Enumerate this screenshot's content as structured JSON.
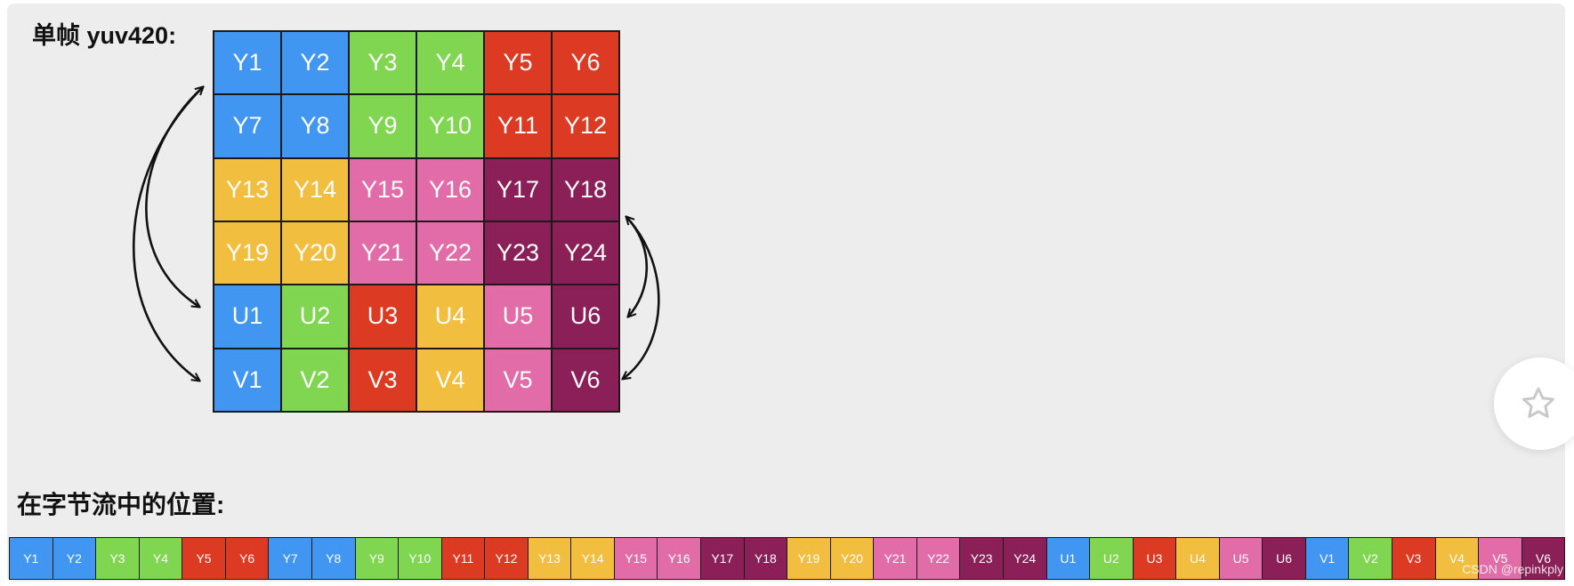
{
  "frame_title": "单帧 yuv420:",
  "stream_title": "在字节流中的位置:",
  "watermark": "CSDN @repinkply",
  "icons": {
    "favorite": "star-outline-icon"
  },
  "colors": {
    "blue": "#4196f1",
    "green": "#80d651",
    "red": "#dd3a23",
    "orange": "#f2be3f",
    "pink": "#e16ca8",
    "purple": "#8b2058"
  },
  "grid_rows": [
    [
      {
        "label": "Y1",
        "color": "blue"
      },
      {
        "label": "Y2",
        "color": "blue"
      },
      {
        "label": "Y3",
        "color": "green"
      },
      {
        "label": "Y4",
        "color": "green"
      },
      {
        "label": "Y5",
        "color": "red"
      },
      {
        "label": "Y6",
        "color": "red"
      }
    ],
    [
      {
        "label": "Y7",
        "color": "blue"
      },
      {
        "label": "Y8",
        "color": "blue"
      },
      {
        "label": "Y9",
        "color": "green"
      },
      {
        "label": "Y10",
        "color": "green"
      },
      {
        "label": "Y11",
        "color": "red"
      },
      {
        "label": "Y12",
        "color": "red"
      }
    ],
    [
      {
        "label": "Y13",
        "color": "orange"
      },
      {
        "label": "Y14",
        "color": "orange"
      },
      {
        "label": "Y15",
        "color": "pink"
      },
      {
        "label": "Y16",
        "color": "pink"
      },
      {
        "label": "Y17",
        "color": "purple"
      },
      {
        "label": "Y18",
        "color": "purple"
      }
    ],
    [
      {
        "label": "Y19",
        "color": "orange"
      },
      {
        "label": "Y20",
        "color": "orange"
      },
      {
        "label": "Y21",
        "color": "pink"
      },
      {
        "label": "Y22",
        "color": "pink"
      },
      {
        "label": "Y23",
        "color": "purple"
      },
      {
        "label": "Y24",
        "color": "purple"
      }
    ],
    [
      {
        "label": "U1",
        "color": "blue"
      },
      {
        "label": "U2",
        "color": "green"
      },
      {
        "label": "U3",
        "color": "red"
      },
      {
        "label": "U4",
        "color": "orange"
      },
      {
        "label": "U5",
        "color": "pink"
      },
      {
        "label": "U6",
        "color": "purple"
      }
    ],
    [
      {
        "label": "V1",
        "color": "blue"
      },
      {
        "label": "V2",
        "color": "green"
      },
      {
        "label": "V3",
        "color": "red"
      },
      {
        "label": "V4",
        "color": "orange"
      },
      {
        "label": "V5",
        "color": "pink"
      },
      {
        "label": "V6",
        "color": "purple"
      }
    ]
  ],
  "stream": [
    {
      "label": "Y1",
      "color": "blue"
    },
    {
      "label": "Y2",
      "color": "blue"
    },
    {
      "label": "Y3",
      "color": "green"
    },
    {
      "label": "Y4",
      "color": "green"
    },
    {
      "label": "Y5",
      "color": "red"
    },
    {
      "label": "Y6",
      "color": "red"
    },
    {
      "label": "Y7",
      "color": "blue"
    },
    {
      "label": "Y8",
      "color": "blue"
    },
    {
      "label": "Y9",
      "color": "green"
    },
    {
      "label": "Y10",
      "color": "green"
    },
    {
      "label": "Y11",
      "color": "red"
    },
    {
      "label": "Y12",
      "color": "red"
    },
    {
      "label": "Y13",
      "color": "orange"
    },
    {
      "label": "Y14",
      "color": "orange"
    },
    {
      "label": "Y15",
      "color": "pink"
    },
    {
      "label": "Y16",
      "color": "pink"
    },
    {
      "label": "Y17",
      "color": "purple"
    },
    {
      "label": "Y18",
      "color": "purple"
    },
    {
      "label": "Y19",
      "color": "orange"
    },
    {
      "label": "Y20",
      "color": "orange"
    },
    {
      "label": "Y21",
      "color": "pink"
    },
    {
      "label": "Y22",
      "color": "pink"
    },
    {
      "label": "Y23",
      "color": "purple"
    },
    {
      "label": "Y24",
      "color": "purple"
    },
    {
      "label": "U1",
      "color": "blue"
    },
    {
      "label": "U2",
      "color": "green"
    },
    {
      "label": "U3",
      "color": "red"
    },
    {
      "label": "U4",
      "color": "orange"
    },
    {
      "label": "U5",
      "color": "pink"
    },
    {
      "label": "U6",
      "color": "purple"
    },
    {
      "label": "V1",
      "color": "blue"
    },
    {
      "label": "V2",
      "color": "green"
    },
    {
      "label": "V3",
      "color": "red"
    },
    {
      "label": "V4",
      "color": "orange"
    },
    {
      "label": "V5",
      "color": "pink"
    },
    {
      "label": "V6",
      "color": "purple"
    }
  ]
}
